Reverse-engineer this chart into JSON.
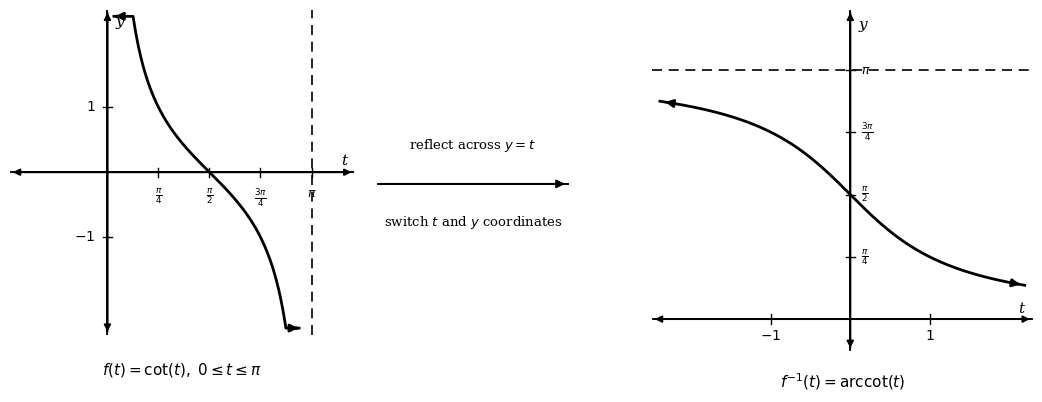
{
  "bg_color": "#ffffff",
  "left_plot": {
    "xlim": [
      -1.5,
      3.8
    ],
    "ylim": [
      -2.5,
      2.5
    ],
    "t_label": "t",
    "y_label": "y",
    "xticks": [
      0.7854,
      1.5708,
      2.3562,
      3.1416
    ],
    "xtick_labels": [
      "$\\frac{\\pi}{4}$",
      "$\\frac{\\pi}{2}$",
      "$\\frac{3\\pi}{4}$",
      "$\\pi$"
    ],
    "yticks": [
      1.0,
      -1.0
    ],
    "ytick_labels": [
      "$1$",
      "$-1$"
    ],
    "func_label": "$f(t) = \\cot(t),\\; 0 \\leq t \\leq \\pi$",
    "curve_color": "#000000",
    "curve_lw": 2.0,
    "cot_tmin": 0.1,
    "cot_tmax": 2.95,
    "cot_ymin": -2.4,
    "cot_ymax": 2.4
  },
  "right_plot": {
    "xlim": [
      -2.5,
      2.3
    ],
    "ylim": [
      -0.4,
      3.9
    ],
    "t_label": "t",
    "y_label": "y",
    "yticks": [
      0.7854,
      1.5708,
      2.3562,
      3.1416
    ],
    "ytick_labels": [
      "$\\frac{\\pi}{4}$",
      "$\\frac{\\pi}{2}$",
      "$\\frac{3\\pi}{4}$",
      "$\\pi$"
    ],
    "xticks": [
      -1.0,
      1.0
    ],
    "xtick_labels": [
      "$-1$",
      "$1$"
    ],
    "func_label": "$f^{-1}(t) =\\mathrm{arccot}(t)$",
    "curve_color": "#000000",
    "curve_lw": 2.0,
    "acot_tmin": -2.4,
    "acot_tmax": 2.2
  },
  "arrow_text_top": "reflect across $y = t$",
  "arrow_text_bottom": "switch $t$ and $y$ coordinates",
  "text_color": "#000000",
  "dashes": [
    6,
    4
  ]
}
